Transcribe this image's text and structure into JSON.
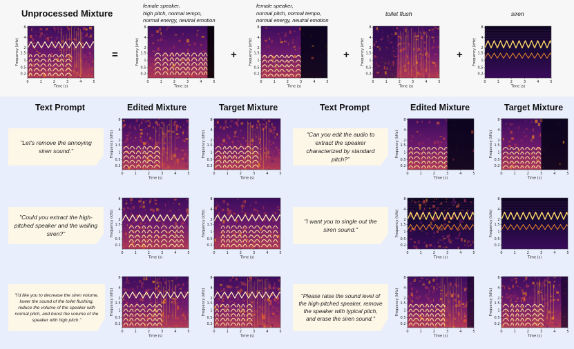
{
  "top": {
    "title": "Unprocessed Mixture",
    "equals": "=",
    "plus": "+",
    "sources": [
      {
        "caption": [
          "female speaker,",
          "high pitch, normal tempo,",
          "normal energy, neutral emotion"
        ]
      },
      {
        "caption": [
          "female speaker,",
          "normal pitch, normal tempo,",
          "normal energy, neutral emotion"
        ]
      },
      {
        "caption": [
          "toilet flush"
        ]
      },
      {
        "caption": [
          "siren"
        ]
      }
    ]
  },
  "columns": {
    "text_prompt": "Text Prompt",
    "edited": "Edited Mixture",
    "target": "Target Mixture"
  },
  "prompts": [
    "\"Let's remove the annoying siren sound.\"",
    "\"Can you edit the audio to extract the speaker characterized by standard pitch?\"",
    "\"Could you extract the high-pitched speaker and the wailing siren?\"",
    "\"I want you to single out the siren sound.\"",
    "\"I'd like you to decrease the siren volume, lower the sound of the toilet flushing, reduce the volume of the speaker with normal pitch, and boost the volume of the speaker with high pitch.\"",
    "\"Please raise the sound level of the high-pitched speaker, remove the speaker with typical pitch, and erase the siren sound.\""
  ],
  "axes": {
    "xlabel": "Time (s)",
    "ylabel": "Frequency (kHz)",
    "xticks": [
      "0",
      "1",
      "2",
      "3",
      "4",
      "5"
    ],
    "yticks": [
      "0.2",
      "0.5",
      "1",
      "1.5",
      "2",
      "4",
      "8"
    ]
  },
  "colors": {
    "top_band": "#f7f7f7",
    "bottom_band": "#e9eefc",
    "bubble": "#fdf7e8",
    "colormap": "inferno"
  }
}
